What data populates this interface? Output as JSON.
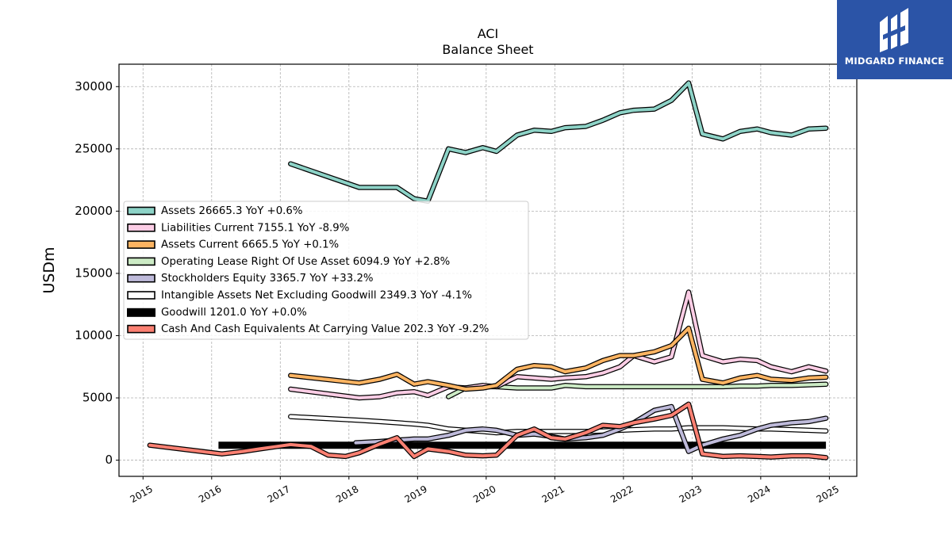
{
  "brand": {
    "name": "MIDGARD FINANCE",
    "bg_color": "#2b54a7"
  },
  "chart_data": {
    "type": "line",
    "title": "ACI",
    "subtitle": "Balance  Sheet",
    "ylabel": "USDm",
    "xlabel": "",
    "ylim": [
      -1300,
      31800
    ],
    "xlim": [
      2014.65,
      2025.4
    ],
    "grid": true,
    "legend_position": "center-left",
    "y_ticks": [
      0,
      5000,
      10000,
      15000,
      20000,
      25000,
      30000
    ],
    "x_ticks": [
      2015,
      2016,
      2017,
      2018,
      2019,
      2020,
      2021,
      2022,
      2023,
      2024,
      2025
    ],
    "series": [
      {
        "name": "Assets  26665.3 YoY +0.6%",
        "color": "#8dd3c7",
        "style": "line",
        "x": [
          2017.15,
          2018.15,
          2018.45,
          2018.7,
          2018.95,
          2019.15,
          2019.45,
          2019.7,
          2019.95,
          2020.15,
          2020.45,
          2020.7,
          2020.95,
          2021.15,
          2021.45,
          2021.7,
          2021.95,
          2022.15,
          2022.45,
          2022.7,
          2022.95,
          2023.15,
          2023.45,
          2023.7,
          2023.95,
          2024.15,
          2024.45,
          2024.7,
          2024.95
        ],
        "y": [
          23800,
          21900,
          21900,
          21900,
          21000,
          20800,
          25000,
          24700,
          25100,
          24800,
          26100,
          26500,
          26400,
          26700,
          26800,
          27300,
          27900,
          28100,
          28200,
          28900,
          30300,
          26200,
          25800,
          26400,
          26600,
          26300,
          26100,
          26600,
          26665
        ]
      },
      {
        "name": "Liabilities Current  7155.1 YoY -8.9%",
        "color": "#fccde5",
        "style": "line",
        "x": [
          2017.15,
          2018.15,
          2018.45,
          2018.7,
          2018.95,
          2019.15,
          2019.45,
          2019.7,
          2019.95,
          2020.15,
          2020.45,
          2020.7,
          2020.95,
          2021.15,
          2021.45,
          2021.7,
          2021.95,
          2022.15,
          2022.45,
          2022.7,
          2022.95,
          2023.15,
          2023.45,
          2023.7,
          2023.95,
          2024.15,
          2024.45,
          2024.7,
          2024.95
        ],
        "y": [
          5700,
          5000,
          5100,
          5400,
          5500,
          5200,
          5900,
          5800,
          6000,
          5900,
          6700,
          6600,
          6500,
          6600,
          6700,
          7000,
          7500,
          8400,
          7900,
          8300,
          13500,
          8400,
          7900,
          8100,
          8000,
          7500,
          7100,
          7500,
          7155
        ]
      },
      {
        "name": "Assets Current  6665.5 YoY +0.1%",
        "color": "#fdb462",
        "style": "line",
        "x": [
          2017.15,
          2018.15,
          2018.45,
          2018.7,
          2018.95,
          2019.15,
          2019.45,
          2019.7,
          2019.95,
          2020.15,
          2020.45,
          2020.7,
          2020.95,
          2021.15,
          2021.45,
          2021.7,
          2021.95,
          2022.15,
          2022.45,
          2022.7,
          2022.95,
          2023.15,
          2023.45,
          2023.7,
          2023.95,
          2024.15,
          2024.45,
          2024.7,
          2024.95
        ],
        "y": [
          6800,
          6200,
          6500,
          6900,
          6100,
          6300,
          6000,
          5700,
          5800,
          6000,
          7300,
          7600,
          7500,
          7100,
          7400,
          8000,
          8400,
          8400,
          8700,
          9200,
          10600,
          6500,
          6200,
          6600,
          6800,
          6500,
          6400,
          6600,
          6665
        ]
      },
      {
        "name": "Operating Lease Right Of Use Asset  6094.9 YoY +2.8%",
        "color": "#ccebc5",
        "style": "line",
        "x": [
          2019.45,
          2019.7,
          2019.95,
          2020.15,
          2020.45,
          2020.7,
          2020.95,
          2021.15,
          2021.45,
          2021.7,
          2021.95,
          2022.15,
          2022.45,
          2022.7,
          2022.95,
          2023.15,
          2023.45,
          2023.7,
          2023.95,
          2024.15,
          2024.45,
          2024.7,
          2024.95
        ],
        "y": [
          5100,
          5800,
          5900,
          5900,
          5800,
          5800,
          5800,
          6000,
          5900,
          5900,
          5900,
          5900,
          5900,
          5900,
          5900,
          5900,
          5900,
          5950,
          5950,
          6000,
          6000,
          6050,
          6095
        ]
      },
      {
        "name": "Stockholders Equity  3365.7 YoY +33.2%",
        "color": "#bebada",
        "style": "line",
        "x": [
          2018.1,
          2018.45,
          2018.7,
          2018.95,
          2019.15,
          2019.45,
          2019.7,
          2019.95,
          2020.15,
          2020.45,
          2020.7,
          2020.95,
          2021.15,
          2021.45,
          2021.7,
          2021.95,
          2022.15,
          2022.45,
          2022.7,
          2022.95,
          2023.15,
          2023.45,
          2023.7,
          2023.95,
          2024.15,
          2024.45,
          2024.7,
          2024.95
        ],
        "y": [
          1400,
          1500,
          1600,
          1700,
          1700,
          2000,
          2400,
          2500,
          2400,
          2000,
          2100,
          1900,
          1700,
          1800,
          2000,
          2500,
          3000,
          4000,
          4300,
          700,
          1200,
          1700,
          2000,
          2500,
          2800,
          3000,
          3100,
          3366
        ]
      },
      {
        "name": "Intangible Assets Net Excluding Goodwill  2349.3 YoY -4.1%",
        "color": "#ffffff",
        "style": "line",
        "x": [
          2017.15,
          2018.15,
          2018.45,
          2018.7,
          2018.95,
          2019.15,
          2019.45,
          2019.7,
          2019.95,
          2020.15,
          2020.45,
          2020.7,
          2020.95,
          2021.15,
          2021.45,
          2021.7,
          2021.95,
          2022.15,
          2022.45,
          2022.7,
          2022.95,
          2023.15,
          2023.45,
          2023.7,
          2023.95,
          2024.15,
          2024.45,
          2024.7,
          2024.95
        ],
        "y": [
          3500,
          3200,
          3100,
          3000,
          2900,
          2800,
          2500,
          2400,
          2300,
          2200,
          2300,
          2300,
          2300,
          2300,
          2300,
          2350,
          2400,
          2450,
          2500,
          2500,
          2600,
          2600,
          2600,
          2550,
          2500,
          2500,
          2450,
          2400,
          2349
        ]
      },
      {
        "name": "Goodwill  1201.0 YoY +0.0%",
        "color": "#000000",
        "style": "thick",
        "x": [
          2016.1,
          2024.95
        ],
        "y": [
          1201,
          1201
        ]
      },
      {
        "name": "Cash And Cash Equivalents At Carrying Value  202.3 YoY -9.2%",
        "color": "#fb8072",
        "style": "line",
        "x": [
          2015.1,
          2016.15,
          2016.45,
          2016.7,
          2016.95,
          2017.15,
          2017.45,
          2017.7,
          2017.95,
          2018.15,
          2018.45,
          2018.7,
          2018.95,
          2019.15,
          2019.45,
          2019.7,
          2019.95,
          2020.15,
          2020.45,
          2020.7,
          2020.95,
          2021.15,
          2021.45,
          2021.7,
          2021.95,
          2022.15,
          2022.45,
          2022.7,
          2022.95,
          2023.15,
          2023.45,
          2023.7,
          2023.95,
          2024.15,
          2024.45,
          2024.7,
          2024.95
        ],
        "y": [
          1200,
          500,
          700,
          900,
          1100,
          1250,
          1100,
          400,
          300,
          600,
          1300,
          1800,
          300,
          900,
          700,
          400,
          350,
          400,
          2000,
          2500,
          1800,
          1700,
          2200,
          2800,
          2700,
          3000,
          3300,
          3600,
          4500,
          500,
          300,
          350,
          300,
          250,
          350,
          350,
          202
        ]
      }
    ]
  }
}
